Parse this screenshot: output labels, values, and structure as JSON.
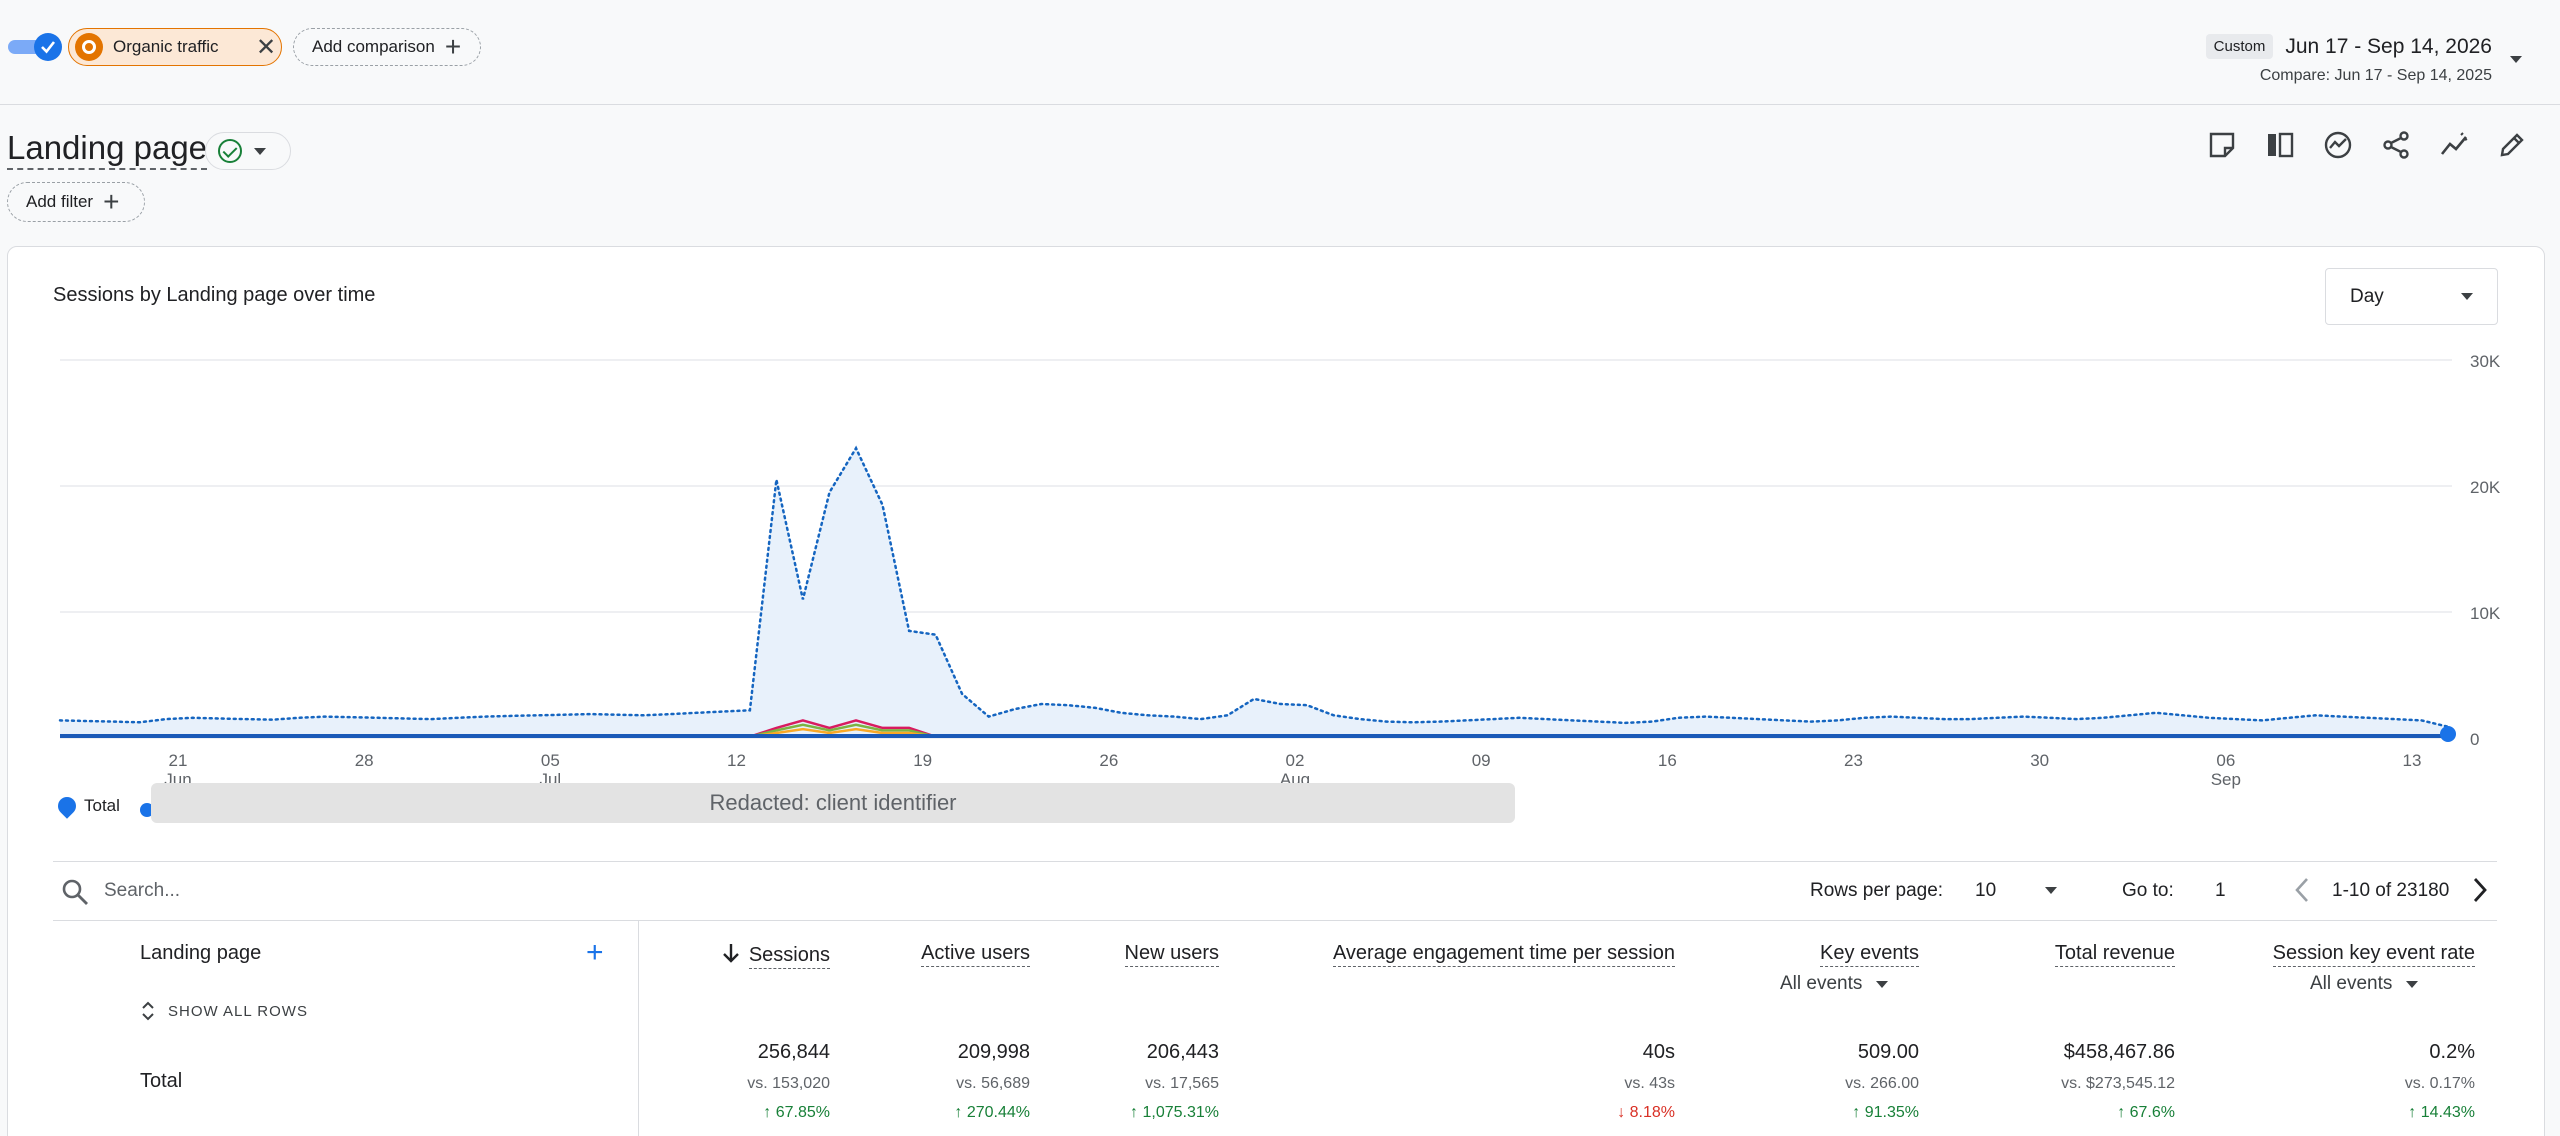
{
  "header": {
    "comparison_chip": "Organic traffic",
    "add_comparison": "Add comparison",
    "date_badge": "Custom",
    "date_range": "Jun 17 - Sep 14, 2026",
    "compare_range": "Compare: Jun 17 - Sep 14, 2025"
  },
  "title_row": {
    "title": "Landing page",
    "add_filter": "Add filter",
    "tools": [
      "notes-icon",
      "compare-columns-icon",
      "insights-icon",
      "share-icon",
      "trend-icon",
      "edit-icon"
    ]
  },
  "chart": {
    "title": "Sessions by Landing page over time",
    "granularity": "Day",
    "legend_total": "Total",
    "redacted_note": "Redacted: client identifier"
  },
  "chart_data": {
    "type": "line",
    "title": "Sessions by Landing page over time",
    "ylim": [
      0,
      30000
    ],
    "y_ticks": [
      "30K",
      "20K",
      "10K",
      "0"
    ],
    "x_ticks": [
      {
        "day": "21",
        "month": "Jun"
      },
      {
        "day": "28",
        "month": ""
      },
      {
        "day": "05",
        "month": "Jul"
      },
      {
        "day": "12",
        "month": ""
      },
      {
        "day": "19",
        "month": ""
      },
      {
        "day": "26",
        "month": ""
      },
      {
        "day": "02",
        "month": "Aug"
      },
      {
        "day": "09",
        "month": ""
      },
      {
        "day": "16",
        "month": ""
      },
      {
        "day": "23",
        "month": ""
      },
      {
        "day": "30",
        "month": ""
      },
      {
        "day": "06",
        "month": "Sep"
      },
      {
        "day": "13",
        "month": ""
      }
    ],
    "series": [
      {
        "name": "Total",
        "values": [
          1400,
          1350,
          1300,
          1250,
          1500,
          1600,
          1550,
          1500,
          1450,
          1600,
          1700,
          1650,
          1600,
          1550,
          1500,
          1600,
          1700,
          1750,
          1800,
          1850,
          1900,
          1850,
          1800,
          1900,
          2000,
          2100,
          2200,
          20500,
          11000,
          19500,
          23000,
          18500,
          8500,
          8200,
          3500,
          1700,
          2300,
          2700,
          2600,
          2400,
          2000,
          1800,
          1700,
          1500,
          1800,
          3100,
          2700,
          2600,
          1800,
          1500,
          1300,
          1250,
          1300,
          1400,
          1500,
          1600,
          1500,
          1400,
          1300,
          1200,
          1300,
          1600,
          1700,
          1600,
          1500,
          1400,
          1300,
          1400,
          1600,
          1700,
          1600,
          1500,
          1500,
          1600,
          1700,
          1600,
          1500,
          1600,
          1800,
          2000,
          1800,
          1600,
          1500,
          1400,
          1600,
          1800,
          1700,
          1600,
          1500,
          1400,
          900
        ]
      }
    ]
  },
  "table": {
    "search_placeholder": "Search...",
    "rows_per_page_label": "Rows per page:",
    "rows_per_page": "10",
    "goto_label": "Go to:",
    "goto_value": "1",
    "range": "1-10 of 23180",
    "dimension_header": "Landing page",
    "show_all_rows": "SHOW ALL ROWS",
    "total_label": "Total",
    "columns": [
      {
        "header": "Sessions",
        "total": "256,844",
        "compare": "vs. 153,020",
        "change": "67.85%"
      },
      {
        "header": "Active users",
        "total": "209,998",
        "compare": "vs. 56,689",
        "change": "270.44%"
      },
      {
        "header": "New users",
        "total": "206,443",
        "compare": "vs. 17,565",
        "change": "1,075.31%"
      },
      {
        "header": "Average engagement time per session",
        "total": "40s",
        "compare": "vs. 43s",
        "change": "8.18%"
      },
      {
        "header": "Key events",
        "sub": "All events",
        "total": "509.00",
        "compare": "vs. 266.00",
        "change": "91.35%"
      },
      {
        "header": "Total revenue",
        "total": "$458,467.86",
        "compare": "vs. $273,545.12",
        "change": "67.6%"
      },
      {
        "header": "Session key event rate",
        "sub": "All events",
        "total": "0.2%",
        "compare": "vs. 0.17%",
        "change": "14.43%"
      }
    ]
  },
  "colors": {
    "accent": "#1a73e8",
    "organic": "#e37400",
    "up": "#188038",
    "down": "#d93025"
  }
}
